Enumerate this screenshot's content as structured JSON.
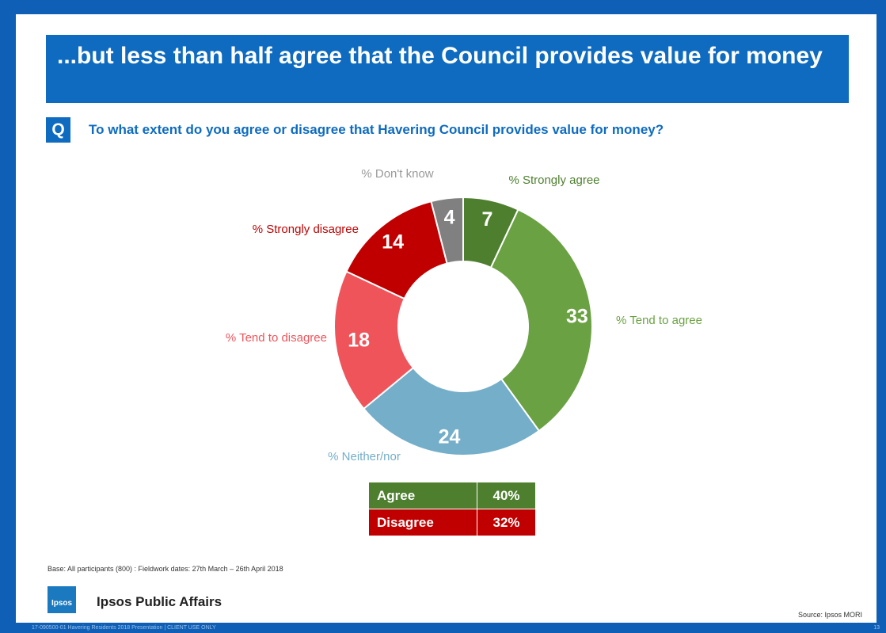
{
  "title": "...but less than half agree that the Council provides value for money",
  "question_marker": "Q",
  "question": "To what extent do you agree or disagree that Havering Council provides value for money?",
  "chart_data": {
    "type": "pie",
    "style": "donut",
    "categories": [
      "% Strongly agree",
      "% Tend to agree",
      "% Neither/nor",
      "% Tend to disagree",
      "% Strongly disagree",
      "% Don't know"
    ],
    "values": [
      7,
      33,
      24,
      18,
      14,
      4
    ],
    "colors": [
      "#4e7f2f",
      "#6aa142",
      "#74aec9",
      "#f0545b",
      "#c00000",
      "#808080"
    ],
    "label_colors": [
      "#4e7f2f",
      "#6aa142",
      "#74aec9",
      "#f0545b",
      "#c00000",
      "#9a9a9a"
    ]
  },
  "summary": [
    {
      "label": "Agree",
      "value": "40%",
      "color": "#4e7f2f"
    },
    {
      "label": "Disagree",
      "value": "32%",
      "color": "#c00000"
    }
  ],
  "base_note": "Base: All participants (800) : Fieldwork dates: 27th March – 26th April 2018",
  "logo_text": "Ipsos",
  "brand": "Ipsos Public Affairs",
  "source": "Source: Ipsos MORI",
  "footer": "17-090500-01 Havering Residents 2018 Presentation | CLIENT USE ONLY",
  "page_number": "13"
}
